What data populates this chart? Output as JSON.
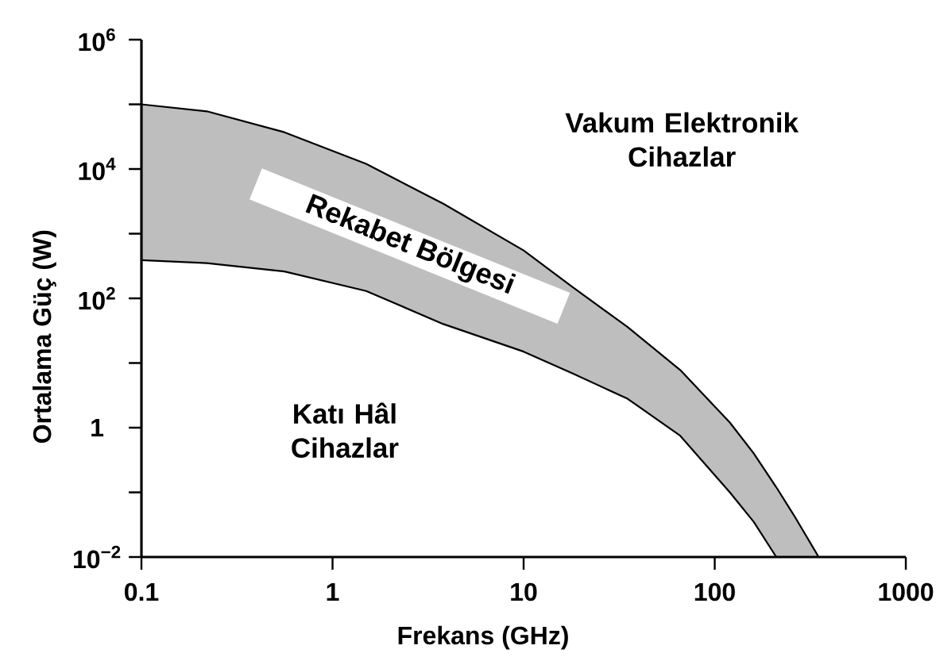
{
  "chart_data": {
    "type": "area",
    "xlabel": "Frekans (GHz)",
    "ylabel": "Ortalama Güç (W)",
    "log": "xy",
    "xlim": [
      0.1,
      1000
    ],
    "ylim": [
      0.01,
      1000000
    ],
    "xticks": [
      0.1,
      1,
      10,
      100,
      1000
    ],
    "yticks": [
      {
        "value": 1000000,
        "label": "10$^{6}$"
      },
      {
        "value": 100000,
        "label": null
      },
      {
        "value": 10000,
        "label": "10$^{4}$"
      },
      {
        "value": 1000,
        "label": null
      },
      {
        "value": 100,
        "label": "10$^{2}$"
      },
      {
        "value": 10,
        "label": null
      },
      1,
      {
        "value": 0.1,
        "label": null
      },
      {
        "value": 0.01,
        "label": "10$^{−2}$"
      }
    ],
    "series": [
      {
        "color": "#bebebe",
        "x": [
          0.1,
          0.22,
          0.56,
          1.5,
          3.8,
          10,
          18,
          35,
          66,
          120,
          160,
          210,
          260,
          350
        ],
        "values": [
          100000,
          78000,
          37000,
          12000,
          2900,
          550,
          150,
          36,
          7.8,
          1.2,
          0.4,
          0.12,
          0.044,
          0.01
        ]
      },
      {
        "color": "#ffffff",
        "x": [
          0.1,
          0.22,
          0.56,
          1.5,
          3.8,
          10,
          18,
          35,
          66,
          120,
          160,
          210
        ],
        "values": [
          390,
          350,
          260,
          130,
          40,
          15,
          6.9,
          2.8,
          0.75,
          0.1,
          0.035,
          0.01
        ]
      }
    ],
    "annotations": [
      "Vakum Elektronik Cihazlar",
      "Rekabet Bölgesi",
      "Katı Hâl Cihazlar"
    ]
  }
}
